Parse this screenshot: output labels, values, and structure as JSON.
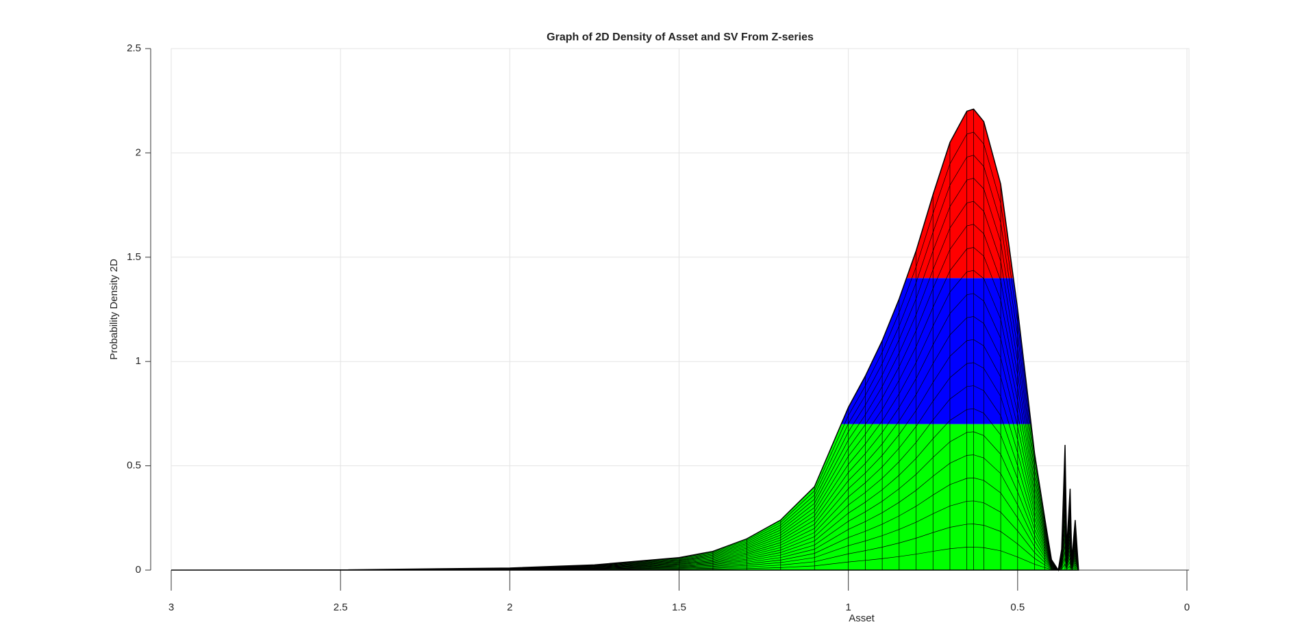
{
  "chart_data": {
    "type": "surface",
    "title": "Graph of 2D Density of Asset and SV From Z-series",
    "xlabel": "Asset",
    "ylabel": "Probability Density 2D",
    "series": [
      {
        "x": [
          3,
          2.5,
          2,
          1.75,
          1.5,
          1.4,
          1.3,
          1.2,
          1.1,
          1.0,
          0.95,
          0.9,
          0.85,
          0.8,
          0.75,
          0.7,
          0.65,
          0.63,
          0.6,
          0.55,
          0.5,
          0.45,
          0.42,
          0.4,
          0.38,
          0.37,
          0.36,
          0.355,
          0.345,
          0.34,
          0.33,
          0.32
        ],
        "values": [
          0,
          0.001,
          0.01,
          0.025,
          0.06,
          0.09,
          0.15,
          0.24,
          0.4,
          0.78,
          0.93,
          1.1,
          1.3,
          1.53,
          1.8,
          2.05,
          2.2,
          2.21,
          2.15,
          1.85,
          1.25,
          0.56,
          0.25,
          0.05,
          0,
          0.1,
          0.6,
          0.1,
          0.39,
          0.05,
          0.24,
          0
        ]
      }
    ],
    "colormap": [
      "#00ff00",
      "#0000ff",
      "#ff0000"
    ],
    "clim": [
      0,
      2.1
    ],
    "xlim": [
      0,
      3
    ],
    "x_reversed": true,
    "xticks": [
      3,
      2.5,
      2,
      1.5,
      1,
      0.5,
      0
    ],
    "ylim": [
      0,
      2.5
    ],
    "yticks": [
      0,
      0.5,
      1,
      1.5,
      2,
      2.5
    ],
    "grid": true
  }
}
